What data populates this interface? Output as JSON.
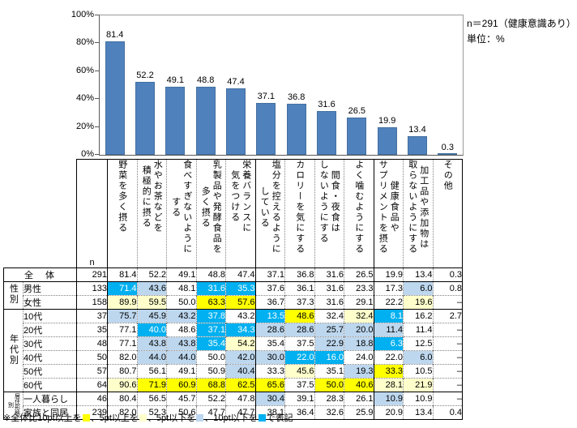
{
  "chart_data": {
    "type": "bar",
    "title": "",
    "categories": [
      "野菜を多く摂る",
      "水やお茶などを積極的に摂る",
      "食べすぎないようにする",
      "乳製品や発酵食品を多く摂る",
      "栄養バランスに気をつける",
      "塩分を控えるようにしている",
      "カロリーを気にする",
      "間食・夜食はしないようにする",
      "よく噛むようにする",
      "健康食品やサプリメントを摂る",
      "加工品や添加物は取らないようにする",
      "その他"
    ],
    "values": [
      81.4,
      52.2,
      49.1,
      48.8,
      47.4,
      37.1,
      36.8,
      31.6,
      26.5,
      19.9,
      13.4,
      0.3
    ],
    "xlabel": "",
    "ylabel": "",
    "ylim": [
      0,
      100
    ],
    "yticks": [
      "0%",
      "20%",
      "40%",
      "60%",
      "80%",
      "100%"
    ],
    "grid": false,
    "legend": "none",
    "bar_color": "#4F81BD",
    "annotations": [
      "n＝291（健康意識あり）",
      "単位：%"
    ]
  },
  "table": {
    "n_header": "n",
    "column_headers": [
      "野菜を多く摂る",
      "水やお茶などを\n積極的に摂る",
      "食べすぎないように\nする",
      "乳製品や発酵食品を\n多く摂る",
      "栄養バランスに\n気をつける",
      "塩分を控えるように\nしている",
      "カロリーを気にする",
      "間食・夜食は\nしないようにする",
      "よく噛むようにする",
      "健康食品や\nサプリメントを摂る",
      "加工品や添加物は\n取らないようにする",
      "その他"
    ],
    "rows": [
      {
        "type": "total",
        "label": "全　体",
        "n": "291",
        "values": [
          "81.4",
          "52.2",
          "49.1",
          "48.8",
          "47.4",
          "37.1",
          "36.8",
          "31.6",
          "26.5",
          "19.9",
          "13.4",
          "0.3"
        ],
        "marks": [
          "",
          "",
          "",
          "",
          "",
          "",
          "",
          "",
          "",
          "",
          "",
          ""
        ]
      },
      {
        "group": "性別",
        "group_span": 2,
        "label": "男性",
        "n": "133",
        "values": [
          "71.4",
          "43.6",
          "48.1",
          "31.6",
          "35.3",
          "37.6",
          "36.1",
          "31.6",
          "23.3",
          "17.3",
          "6.0",
          "0.8"
        ],
        "marks": [
          "b10",
          "b5",
          "",
          "b10",
          "b10",
          "",
          "",
          "",
          "",
          "",
          "b5",
          ""
        ]
      },
      {
        "label": "女性",
        "n": "158",
        "values": [
          "89.9",
          "59.5",
          "50.0",
          "63.3",
          "57.6",
          "36.7",
          "37.3",
          "31.6",
          "29.1",
          "22.2",
          "19.6",
          "–"
        ],
        "marks": [
          "y5",
          "y5",
          "",
          "y10",
          "y10",
          "",
          "",
          "",
          "",
          "",
          "y5",
          ""
        ]
      },
      {
        "group": "年代別",
        "group_span": 6,
        "label": "10代",
        "n": "37",
        "values": [
          "75.7",
          "45.9",
          "43.2",
          "37.8",
          "43.2",
          "13.5",
          "48.6",
          "32.4",
          "32.4",
          "8.1",
          "16.2",
          "2.7"
        ],
        "marks": [
          "b5",
          "b5",
          "b5",
          "b10",
          "",
          "b10",
          "y10",
          "",
          "y5",
          "b10",
          "",
          ""
        ]
      },
      {
        "label": "20代",
        "n": "35",
        "values": [
          "77.1",
          "40.0",
          "48.6",
          "37.1",
          "34.3",
          "28.6",
          "28.6",
          "25.7",
          "20.0",
          "11.4",
          "11.4",
          "–"
        ],
        "marks": [
          "",
          "b10",
          "",
          "b10",
          "b10",
          "b5",
          "b5",
          "b5",
          "b5",
          "b5",
          "",
          ""
        ]
      },
      {
        "label": "30代",
        "n": "48",
        "values": [
          "77.1",
          "43.8",
          "43.8",
          "35.4",
          "54.2",
          "35.4",
          "37.5",
          "22.9",
          "18.8",
          "6.3",
          "12.5",
          "–"
        ],
        "marks": [
          "",
          "b5",
          "b5",
          "b10",
          "y5",
          "",
          "",
          "b5",
          "b5",
          "b10",
          "",
          ""
        ]
      },
      {
        "label": "40代",
        "n": "50",
        "values": [
          "82.0",
          "44.0",
          "44.0",
          "50.0",
          "42.0",
          "30.0",
          "22.0",
          "16.0",
          "24.0",
          "22.0",
          "6.0",
          "–"
        ],
        "marks": [
          "",
          "b5",
          "b5",
          "",
          "b5",
          "b5",
          "b10",
          "b10",
          "",
          "",
          "b5",
          ""
        ]
      },
      {
        "label": "50代",
        "n": "57",
        "values": [
          "80.7",
          "56.1",
          "49.1",
          "50.9",
          "40.4",
          "33.3",
          "45.6",
          "35.1",
          "19.3",
          "33.3",
          "10.5",
          "–"
        ],
        "marks": [
          "",
          "",
          "",
          "",
          "b5",
          "",
          "y5",
          "",
          "b5",
          "y10",
          "",
          ""
        ]
      },
      {
        "label": "60代",
        "n": "64",
        "values": [
          "90.6",
          "71.9",
          "60.9",
          "68.8",
          "62.5",
          "65.6",
          "37.5",
          "50.0",
          "40.6",
          "28.1",
          "21.9",
          "–"
        ],
        "marks": [
          "y5",
          "y10",
          "y10",
          "y10",
          "y10",
          "y10",
          "",
          "y10",
          "y10",
          "y5",
          "y5",
          ""
        ]
      },
      {
        "group": "居住形態別",
        "group_span": 2,
        "group_small": true,
        "label": "一人暮らし",
        "n": "46",
        "values": [
          "80.4",
          "56.5",
          "45.7",
          "52.2",
          "47.8",
          "30.4",
          "39.1",
          "28.3",
          "26.1",
          "10.9",
          "10.9",
          "–"
        ],
        "marks": [
          "",
          "",
          "",
          "",
          "",
          "b5",
          "",
          "",
          "",
          "b5",
          "",
          ""
        ]
      },
      {
        "label": "家族と同居",
        "n": "239",
        "values": [
          "82.0",
          "52.3",
          "50.6",
          "47.7",
          "47.7",
          "38.1",
          "36.4",
          "32.6",
          "25.9",
          "20.9",
          "13.4",
          "0.4"
        ],
        "marks": [
          "",
          "",
          "",
          "",
          "",
          "",
          "",
          "",
          "",
          "",
          "",
          ""
        ]
      }
    ]
  },
  "footnote": {
    "segments": [
      {
        "text": "※全体比10pt以上を"
      },
      {
        "swatch": "#FFFF00"
      },
      {
        "text": "、5pt以上を"
      },
      {
        "swatch": "#FFFFCC"
      },
      {
        "text": "、5pt以下を"
      },
      {
        "swatch": "#BDD7EE"
      },
      {
        "text": "、10pt以下を"
      },
      {
        "swatch": "#00B0F0"
      },
      {
        "text": "で表記"
      }
    ]
  },
  "colors": {
    "bar": "#4F81BD",
    "highlight_plus10pt": "#FFFF00",
    "highlight_plus5pt": "#FFFFCC",
    "highlight_minus5pt": "#BDD7EE",
    "highlight_minus10pt": "#00B0F0"
  }
}
